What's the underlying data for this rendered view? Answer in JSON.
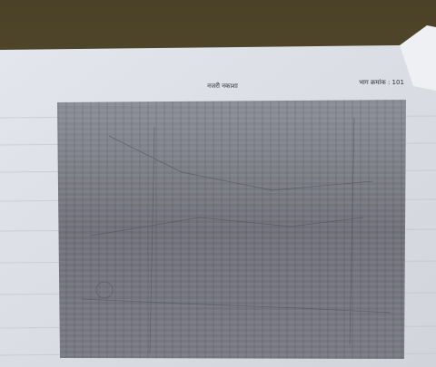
{
  "header": {
    "title": "नजरी नकाशा",
    "page_ref": "भाग क्रमांक : 101"
  }
}
